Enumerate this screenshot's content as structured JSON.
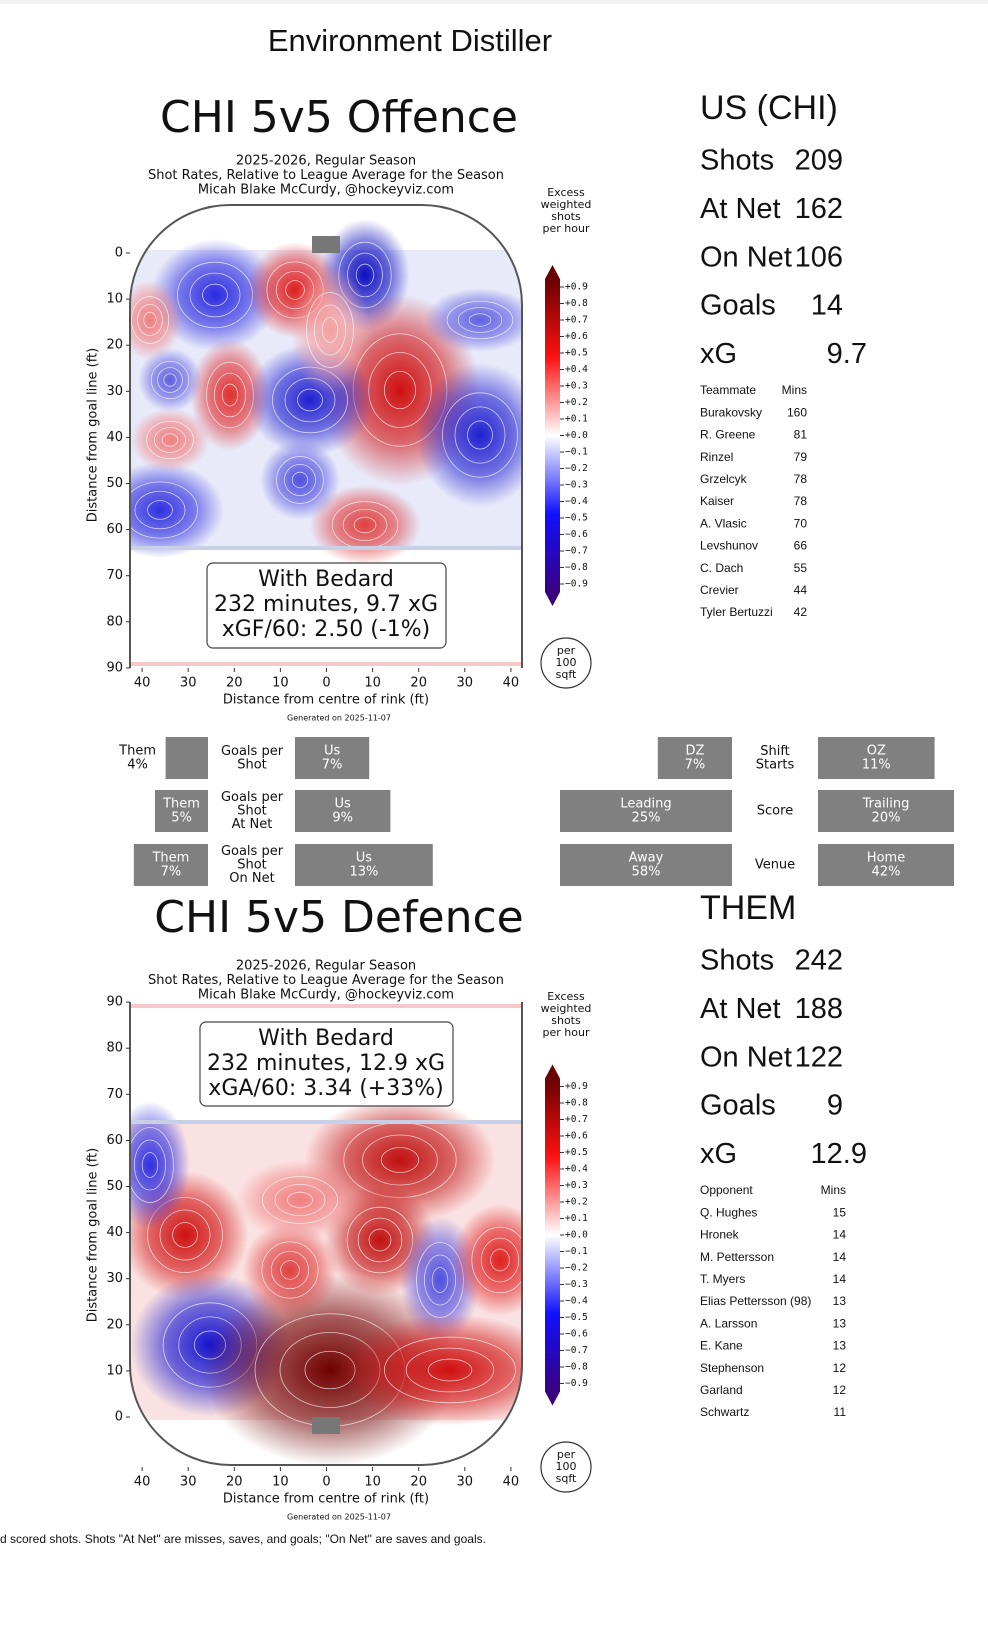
{
  "header": {
    "title": "Environment Distiller"
  },
  "offence": {
    "title": "CHI 5v5 Offence",
    "subtitle": [
      "2025-2026, Regular Season",
      "Shot Rates, Relative to League Average for the Season",
      "Micah Blake McCurdy, @hockeyviz.com"
    ],
    "y_label": "Distance from goal line (ft)",
    "x_label": "Distance from centre of rink (ft)",
    "yticks": [
      0,
      10,
      20,
      30,
      40,
      50,
      60,
      70,
      80,
      90
    ],
    "xticks": [
      {
        "value": -40,
        "label": "40"
      },
      {
        "value": -30,
        "label": "30"
      },
      {
        "value": -20,
        "label": "20"
      },
      {
        "value": -10,
        "label": "10"
      },
      0,
      10,
      20,
      30,
      40
    ],
    "colorbar_title": [
      "Excess",
      "weighted",
      "shots",
      "per hour"
    ],
    "colorbar_ticks": [
      {
        "value": 0.9,
        "label": "+0.9"
      },
      {
        "value": 0.8,
        "label": "+0.8"
      },
      {
        "value": 0.7,
        "label": "+0.7"
      },
      {
        "value": 0.6,
        "label": "+0.6"
      },
      {
        "value": 0.5,
        "label": "+0.5"
      },
      {
        "value": 0.4,
        "label": "+0.4"
      },
      {
        "value": 0.3,
        "label": "+0.3"
      },
      {
        "value": 0.2,
        "label": "+0.2"
      },
      {
        "value": 0.1,
        "label": "+0.1"
      },
      {
        "value": 0,
        "label": "+0.0"
      },
      {
        "value": -0.1,
        "label": "−0.1"
      },
      {
        "value": -0.2,
        "label": "−0.2"
      },
      {
        "value": -0.3,
        "label": "−0.3"
      },
      {
        "value": -0.4,
        "label": "−0.4"
      },
      {
        "value": -0.5,
        "label": "−0.5"
      },
      {
        "value": -0.6,
        "label": "−0.6"
      },
      {
        "value": -0.7,
        "label": "−0.7"
      },
      {
        "value": -0.8,
        "label": "−0.8"
      },
      {
        "value": -0.9,
        "label": "−0.9"
      }
    ],
    "annotation": [
      "With Bedard",
      "232 minutes, 9.7 xG",
      "xGF/60: 2.50 (-1%)"
    ],
    "unit_badge": [
      "per",
      "100",
      "sqft"
    ],
    "generated": "Generated on 2025-11-07"
  },
  "defence": {
    "title": "CHI 5v5 Defence",
    "subtitle": [
      "2025-2026, Regular Season",
      "Shot Rates, Relative to League Average for the Season",
      "Micah Blake McCurdy, @hockeyviz.com"
    ],
    "y_label": "Distance from goal line (ft)",
    "x_label": "Distance from centre of rink (ft)",
    "yticks": [
      0,
      10,
      20,
      30,
      40,
      50,
      60,
      70,
      80,
      90
    ],
    "xticks": [
      {
        "value": -40,
        "label": "40"
      },
      {
        "value": -30,
        "label": "30"
      },
      {
        "value": -20,
        "label": "20"
      },
      {
        "value": -10,
        "label": "10"
      },
      0,
      10,
      20,
      30,
      40
    ],
    "colorbar_title": [
      "Excess",
      "weighted",
      "shots",
      "per hour"
    ],
    "colorbar_ticks": [
      {
        "value": 0.9,
        "label": "+0.9"
      },
      {
        "value": 0.8,
        "label": "+0.8"
      },
      {
        "value": 0.7,
        "label": "+0.7"
      },
      {
        "value": 0.6,
        "label": "+0.6"
      },
      {
        "value": 0.5,
        "label": "+0.5"
      },
      {
        "value": 0.4,
        "label": "+0.4"
      },
      {
        "value": 0.3,
        "label": "+0.3"
      },
      {
        "value": 0.2,
        "label": "+0.2"
      },
      {
        "value": 0.1,
        "label": "+0.1"
      },
      {
        "value": 0,
        "label": "+0.0"
      },
      {
        "value": -0.1,
        "label": "−0.1"
      },
      {
        "value": -0.2,
        "label": "−0.2"
      },
      {
        "value": -0.3,
        "label": "−0.3"
      },
      {
        "value": -0.4,
        "label": "−0.4"
      },
      {
        "value": -0.5,
        "label": "−0.5"
      },
      {
        "value": -0.6,
        "label": "−0.6"
      },
      {
        "value": -0.7,
        "label": "−0.7"
      },
      {
        "value": -0.8,
        "label": "−0.8"
      },
      {
        "value": -0.9,
        "label": "−0.9"
      }
    ],
    "annotation": [
      "With Bedard",
      "232 minutes, 12.9 xG",
      "xGA/60: 3.34 (+33%)"
    ],
    "unit_badge": [
      "per",
      "100",
      "sqft"
    ],
    "generated": "Generated on 2025-11-07"
  },
  "us": {
    "heading": "US (CHI)",
    "stats": [
      {
        "label": "Shots",
        "value": 209
      },
      {
        "label": "At Net",
        "value": 162
      },
      {
        "label": "On Net",
        "value": 106
      },
      {
        "label": "Goals",
        "value": 14
      },
      {
        "label": "xG",
        "value": 9.7
      }
    ],
    "table_header": [
      "Teammate",
      "Mins"
    ],
    "rows": [
      [
        "Burakovsky",
        160
      ],
      [
        "R. Greene",
        81
      ],
      [
        "Rinzel",
        79
      ],
      [
        "Grzelcyk",
        78
      ],
      [
        "Kaiser",
        78
      ],
      [
        "A. Vlasic",
        70
      ],
      [
        "Levshunov",
        66
      ],
      [
        "C. Dach",
        55
      ],
      [
        "Crevier",
        44
      ],
      [
        "Tyler Bertuzzi",
        42
      ]
    ]
  },
  "them": {
    "heading": "THEM",
    "stats": [
      {
        "label": "Shots",
        "value": 242
      },
      {
        "label": "At Net",
        "value": 188
      },
      {
        "label": "On Net",
        "value": 122
      },
      {
        "label": "Goals",
        "value": 9
      },
      {
        "label": "xG",
        "value": 12.9
      }
    ],
    "table_header": [
      "Opponent",
      "Mins"
    ],
    "rows": [
      [
        "Q. Hughes",
        15
      ],
      [
        "Hronek",
        14
      ],
      [
        "M. Pettersson",
        14
      ],
      [
        "T. Myers",
        14
      ],
      [
        "Elias Pettersson (98)",
        13
      ],
      [
        "A. Larsson",
        13
      ],
      [
        "E. Kane",
        13
      ],
      [
        "Stephenson",
        12
      ],
      [
        "Garland",
        12
      ],
      [
        "Schwartz",
        11
      ]
    ]
  },
  "rates": [
    {
      "label": [
        "Goals per",
        "Shot"
      ],
      "them": {
        "name": "Them",
        "value": 4,
        "value_label": "4%"
      },
      "us": {
        "name": "Us",
        "value": 7,
        "value_label": "7%"
      }
    },
    {
      "label": [
        "Goals per",
        "Shot",
        "At Net"
      ],
      "them": {
        "name": "Them",
        "value": 5,
        "value_label": "5%"
      },
      "us": {
        "name": "Us",
        "value": 9,
        "value_label": "9%"
      }
    },
    {
      "label": [
        "Goals per",
        "Shot",
        "On Net"
      ],
      "them": {
        "name": "Them",
        "value": 7,
        "value_label": "7%"
      },
      "us": {
        "name": "Us",
        "value": 13,
        "value_label": "13%"
      }
    }
  ],
  "splits": [
    {
      "label": [
        "Shift",
        "Starts"
      ],
      "left": {
        "name": "DZ",
        "value": 7,
        "value_label": "7%"
      },
      "right": {
        "name": "OZ",
        "value": 11,
        "value_label": "11%"
      }
    },
    {
      "label": [
        "Score"
      ],
      "left": {
        "name": "Leading",
        "value": 25,
        "value_label": "25%"
      },
      "right": {
        "name": "Trailing",
        "value": 20,
        "value_label": "20%"
      }
    },
    {
      "label": [
        "Venue"
      ],
      "left": {
        "name": "Away",
        "value": 58,
        "value_label": "58%"
      },
      "right": {
        "name": "Home",
        "value": 42,
        "value_label": "42%"
      }
    }
  ],
  "footer": "d scored shots. Shots \"At Net\" are misses, saves, and goals; \"On Net\" are saves and goals."
}
